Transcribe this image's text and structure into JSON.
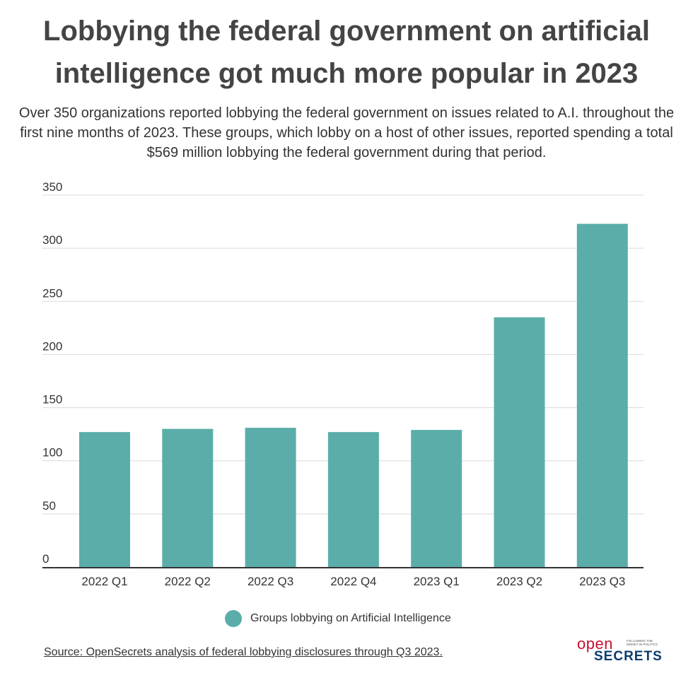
{
  "title": "Lobbying the federal government on artificial intelligence got much more popular in 2023",
  "subtitle": "Over 350 organizations reported lobbying the federal government on issues related to A.I. throughout the first nine months of 2023. These groups, which lobby on a host of other issues, reported spending a total $569 million lobbying the federal government during that period.",
  "source": "Source: OpenSecrets analysis of federal lobbying disclosures through Q3 2023.",
  "logo": {
    "open": "open",
    "secrets": "SECRETS",
    "tagline": "FOLLOWING THE MONEY IN POLITICS"
  },
  "colors": {
    "bar": "#5badaa",
    "grid": "#d9d9d9",
    "axis": "#333333"
  },
  "chart_data": {
    "type": "bar",
    "categories": [
      "2022 Q1",
      "2022 Q2",
      "2022 Q3",
      "2022 Q4",
      "2023 Q1",
      "2023 Q2",
      "2023 Q3"
    ],
    "series": [
      {
        "name": "Groups lobbying on Artificial Intelligence",
        "values": [
          127,
          130,
          131,
          127,
          129,
          235,
          323
        ]
      }
    ],
    "yticks": [
      0,
      50,
      100,
      150,
      200,
      250,
      300,
      350
    ],
    "ylim": [
      0,
      350
    ],
    "xlabel": "",
    "ylabel": "",
    "grid": true,
    "legend": "bottom-center"
  }
}
